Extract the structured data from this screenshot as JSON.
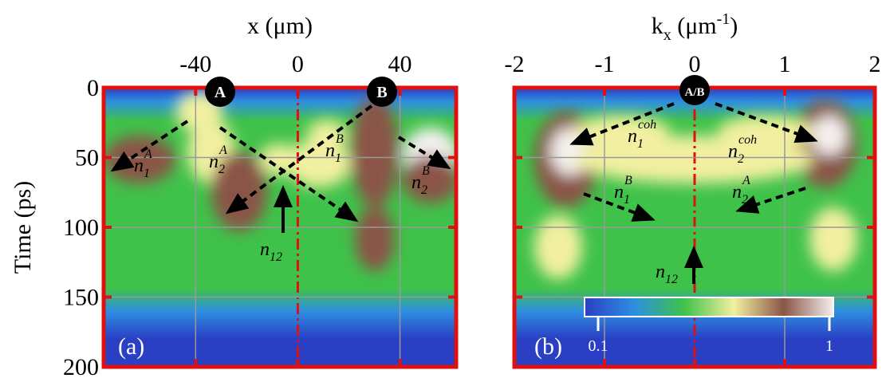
{
  "chart_data": [
    {
      "type": "heatmap",
      "panel_label": "(a)",
      "xlabel": {
        "main": "x (μm)"
      },
      "ylabel": "Time (ps)",
      "xlim": [
        -76,
        62
      ],
      "xticks": [
        -40,
        0,
        40
      ],
      "ylim": [
        0,
        200
      ],
      "yticks": [
        0,
        50,
        100,
        150,
        200
      ],
      "ytick_labels": true,
      "markers": [
        "A",
        "B"
      ],
      "annotations": [
        {
          "text": "n",
          "sub": "1",
          "sup": "A"
        },
        {
          "text": "n",
          "sub": "2",
          "sup": "A"
        },
        {
          "text": "n",
          "sub": "1",
          "sup": "B"
        },
        {
          "text": "n",
          "sub": "2",
          "sup": "B"
        },
        {
          "text": "n",
          "sub": "12"
        }
      ],
      "colormap": [
        "#2a3fc4",
        "#2e8fe0",
        "#3fc24a",
        "#f2f0a0",
        "#8a5546",
        "#f4f0ee"
      ]
    },
    {
      "type": "heatmap",
      "panel_label": "(b)",
      "xlabel": {
        "main": "k",
        "sub": "x",
        "unit": " (μm",
        "sup": "-1",
        "close": ")"
      },
      "xlim": [
        -2,
        2
      ],
      "xticks": [
        -2,
        -1,
        0,
        1,
        2
      ],
      "ylim": [
        0,
        200
      ],
      "yticks": [
        0,
        50,
        100,
        150,
        200
      ],
      "ytick_labels": false,
      "markers": [
        "A/B"
      ],
      "annotations": [
        {
          "text": "n",
          "sub": "1",
          "sup": "coh"
        },
        {
          "text": "n",
          "sub": "2",
          "sup": "coh"
        },
        {
          "text": "n",
          "sub": "1",
          "sup": "B"
        },
        {
          "text": "n",
          "sub": "2",
          "sup": "A"
        },
        {
          "text": "n",
          "sub": "12"
        }
      ],
      "colormap": [
        "#2a3fc4",
        "#2e8fe0",
        "#3fc24a",
        "#f2f0a0",
        "#8a5546",
        "#f4f0ee"
      ],
      "colorbar": {
        "scale": "log",
        "ticks": [
          0.1,
          1
        ]
      }
    }
  ]
}
